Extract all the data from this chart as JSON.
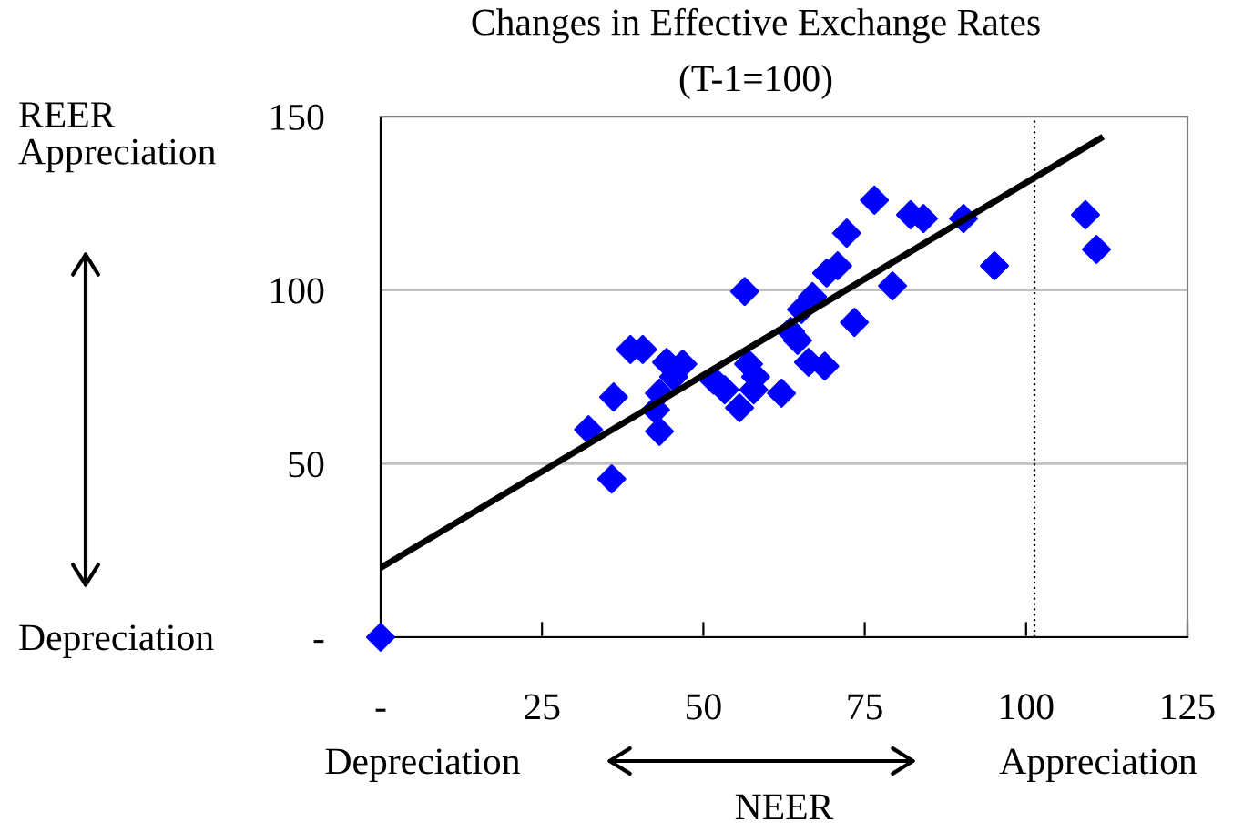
{
  "chart_data": {
    "type": "scatter",
    "title": "Changes in Effective Exchange Rates",
    "subtitle": "(T-1=100)",
    "xlabel": "NEER",
    "annotations": [
      "REER\nAppreciation",
      "Depreciation",
      "Depreciation",
      "Appreciation"
    ],
    "x": [
      0,
      32.2,
      36.1,
      35.8,
      38.7,
      40.6,
      42.6,
      43.2,
      43.2,
      44.3,
      45.4,
      46.8,
      51.6,
      53.3,
      55.6,
      56.4,
      57,
      57.8,
      58.1,
      62.1,
      63.5,
      64.6,
      65.2,
      66.3,
      66.9,
      68.8,
      69.1,
      70.8,
      72.2,
      73.4,
      76.5,
      79.3,
      82.1,
      84.1,
      90.3,
      95.1,
      109.2,
      110.9
    ],
    "series": [
      {
        "color": "#0000ff",
        "marker": "diamond",
        "values": [
          0,
          59.8,
          69.2,
          45.6,
          82.9,
          82.9,
          65.5,
          70.3,
          59.3,
          79.2,
          75,
          78.7,
          74,
          71.3,
          66.1,
          99.6,
          78.7,
          71.3,
          75,
          70.3,
          88.1,
          85.5,
          94.4,
          79.2,
          98.1,
          78.1,
          104.9,
          107,
          116.4,
          90.7,
          125.9,
          101.2,
          121.7,
          120.6,
          120.6,
          107,
          121.7,
          111.7
        ]
      },
      {
        "type": "line",
        "color": "#000000",
        "line_style": "solid",
        "marker": "none",
        "x": [
          0,
          111.5
        ],
        "values": [
          20,
          143.7
        ]
      }
    ],
    "ref_lines": [
      {
        "axis": "x",
        "value": 101.3,
        "color": "#000000",
        "line_style": "dotted"
      }
    ],
    "xlim": [
      0,
      125
    ],
    "xticks": [
      {
        "value": 0,
        "label": "-"
      },
      25,
      50,
      75,
      100,
      125
    ],
    "ylim": [
      0,
      150
    ],
    "yticks": [
      {
        "value": 0,
        "label": "-"
      },
      50,
      100,
      150
    ],
    "grid": "y",
    "legend": false
  }
}
